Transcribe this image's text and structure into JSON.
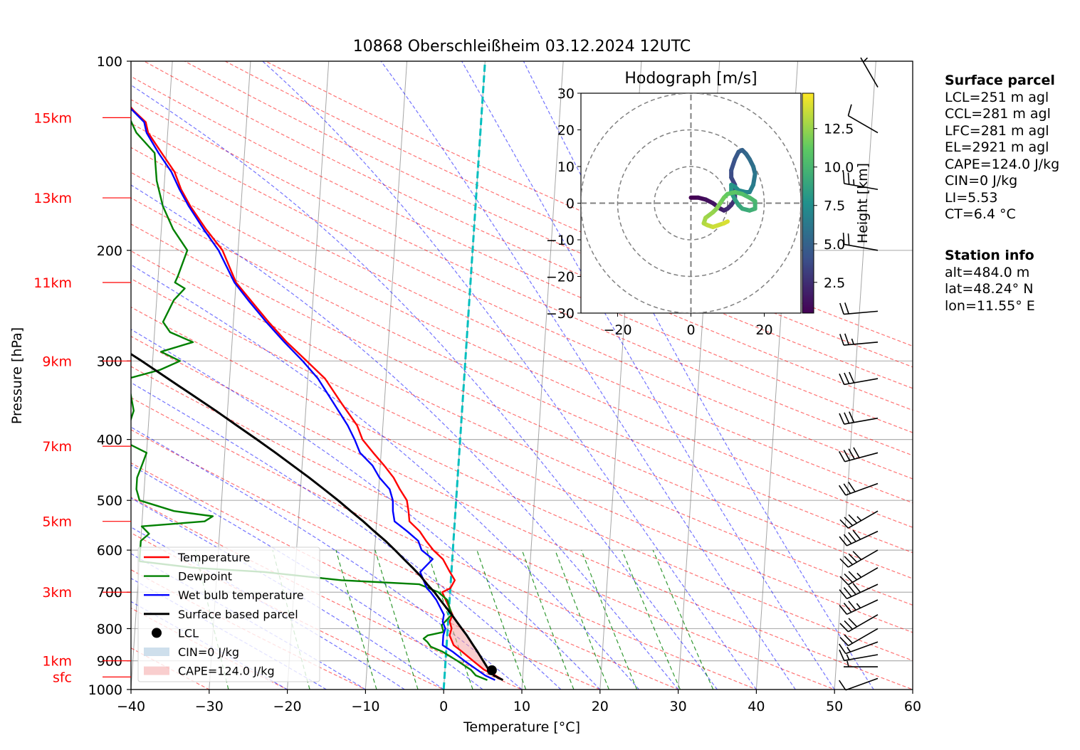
{
  "chart_data": {
    "type": "skewt",
    "title": "10868 Oberschleißheim 03.12.2024 12UTC",
    "xlabel": "Temperature [°C]",
    "ylabel": "Pressure [hPa]",
    "xlim": [
      -40,
      60
    ],
    "ylim": [
      1000,
      100
    ],
    "x_ticks": [
      -40,
      -30,
      -20,
      -10,
      0,
      10,
      20,
      30,
      40,
      50,
      60
    ],
    "pressure_ticks": [
      100,
      200,
      300,
      400,
      500,
      600,
      700,
      800,
      900,
      1000
    ],
    "height_ticks": [
      {
        "label": "sfc",
        "p": 955
      },
      {
        "label": "1km",
        "p": 900
      },
      {
        "label": "3km",
        "p": 700
      },
      {
        "label": "5km",
        "p": 540
      },
      {
        "label": "7km",
        "p": 410
      },
      {
        "label": "9km",
        "p": 300
      },
      {
        "label": "11km",
        "p": 225
      },
      {
        "label": "13km",
        "p": 165
      },
      {
        "label": "15km",
        "p": 123
      }
    ],
    "height_tick_color": "#ff0000",
    "series": [
      {
        "name": "Temperature",
        "color": "#ff0000",
        "p": [
          966,
          950,
          930,
          900,
          870,
          850,
          820,
          800,
          780,
          760,
          720,
          700,
          690,
          670,
          650,
          620,
          600,
          580,
          560,
          540,
          520,
          500,
          480,
          460,
          440,
          420,
          400,
          380,
          350,
          320,
          300,
          280,
          260,
          240,
          225,
          200,
          185,
          170,
          160,
          150,
          140,
          130,
          125,
          120,
          117
        ],
        "t": [
          7.5,
          6.5,
          5.0,
          3.5,
          2.0,
          0.9,
          0.3,
          0.5,
          0.2,
          0.5,
          -0.5,
          -1.0,
          0,
          0.5,
          -0.2,
          -1.2,
          -2.5,
          -3.5,
          -4.4,
          -5.8,
          -6.0,
          -6.3,
          -7.3,
          -8.2,
          -9.5,
          -11.0,
          -12.5,
          -13.3,
          -15.5,
          -17.8,
          -20.3,
          -23.0,
          -25.5,
          -28.0,
          -30.0,
          -32.0,
          -34.3,
          -36.5,
          -37.8,
          -38.8,
          -40.6,
          -42.5,
          -42.9,
          -44.5,
          -45.3
        ]
      },
      {
        "name": "Dewpoint",
        "color": "#008000",
        "p": [
          966,
          950,
          930,
          900,
          870,
          855,
          840,
          830,
          820,
          810,
          790,
          760,
          720,
          700,
          680,
          670,
          650,
          640,
          625,
          600,
          580,
          565,
          550,
          540,
          530,
          520,
          500,
          480,
          460,
          440,
          420,
          400,
          390,
          380,
          360,
          340,
          320,
          310,
          300,
          290,
          280,
          270,
          260,
          240,
          230,
          225,
          220,
          200,
          185,
          170,
          155,
          140,
          130,
          120
        ],
        "t": [
          5.5,
          4.0,
          3.3,
          1.5,
          -0.5,
          -2.0,
          -2.5,
          -3.0,
          -2.5,
          -0.5,
          -0.8,
          0.4,
          -0.3,
          -1.5,
          -4.0,
          -14.0,
          -24.0,
          -33.0,
          -40.0,
          -40.0,
          -40.0,
          -39.0,
          -40.0,
          -32.0,
          -31.0,
          -36.0,
          -40.5,
          -41.0,
          -41.0,
          -40.5,
          -40.0,
          -43.5,
          -44.5,
          -42.5,
          -42.0,
          -42.5,
          -43.0,
          -39.0,
          -36.5,
          -39.0,
          -35.0,
          -38.0,
          -39.0,
          -37.8,
          -36.5,
          -37.8,
          -37.5,
          -36.5,
          -38.5,
          -40.0,
          -41.0,
          -41.5,
          -44.0,
          -45.5
        ]
      },
      {
        "name": "Wet bulb temperature",
        "color": "#0000ff",
        "p": [
          966,
          950,
          930,
          900,
          870,
          850,
          820,
          800,
          780,
          760,
          720,
          700,
          690,
          670,
          650,
          620,
          600,
          580,
          560,
          540,
          520,
          500,
          480,
          460,
          440,
          420,
          400,
          380,
          350,
          320,
          300,
          280,
          260,
          240,
          225,
          200,
          185,
          170,
          160,
          150,
          140,
          130,
          125,
          120,
          117
        ],
        "t": [
          6.5,
          5.2,
          4.1,
          2.4,
          0.8,
          -0.5,
          -0.5,
          -0.3,
          -0.7,
          -0.6,
          -1.7,
          -2.5,
          -3.0,
          -3.5,
          -4.0,
          -2.5,
          -4.0,
          -4.5,
          -6.0,
          -7.7,
          -8.0,
          -8.1,
          -8.6,
          -10.0,
          -11.0,
          -12.7,
          -13.5,
          -14.5,
          -16.5,
          -18.7,
          -20.8,
          -23.3,
          -25.8,
          -28.3,
          -30.2,
          -32.5,
          -34.6,
          -36.7,
          -38.0,
          -39.2,
          -41.0,
          -42.7,
          -43.1,
          -44.6,
          -45.6
        ]
      },
      {
        "name": "Surface based parcel",
        "color": "#000000",
        "p": [
          966,
          950,
          930,
          900,
          870,
          850,
          820,
          800,
          780,
          760,
          720,
          700,
          680,
          660,
          640,
          620,
          600,
          580,
          560,
          540,
          520,
          500,
          480,
          460,
          440,
          420,
          400,
          380,
          360,
          340,
          320,
          300,
          280,
          260,
          240,
          220,
          200,
          180,
          160
        ],
        "t": [
          7.5,
          6.3,
          5.6,
          4.8,
          4.0,
          3.4,
          2.5,
          1.8,
          1.1,
          0.4,
          -1.2,
          -2.0,
          -3.0,
          -3.9,
          -5.0,
          -6.2,
          -7.4,
          -8.7,
          -10.2,
          -11.7,
          -13.4,
          -15.1,
          -17.0,
          -19.0,
          -21.2,
          -23.5,
          -26.0,
          -28.7,
          -31.5,
          -34.6,
          -37.9,
          -41.4,
          -45.3,
          -49.4,
          -53.9,
          -58.8,
          -64.1,
          -70.0,
          -76.5
        ]
      }
    ],
    "lcl": {
      "name": "LCL",
      "t": 6.0,
      "p": 932
    },
    "cin_fill_label": "CIN=0 J/kg",
    "cape_fill_label": "CAPE=124.0 J/kg",
    "hodograph": {
      "title": "Hodograph [m/s]",
      "range": [
        -30,
        30
      ],
      "ticks": [
        -30,
        -20,
        -10,
        0,
        10,
        20,
        30
      ],
      "xticks": [
        -20,
        0,
        20
      ],
      "rings": [
        10,
        20,
        30
      ],
      "colorbar_label": "Height [km]",
      "colorbar_ticks": [
        2.5,
        5.0,
        7.5,
        10.0,
        12.5
      ],
      "colorbar_range": [
        0.5,
        14.8
      ],
      "u": [
        0,
        2,
        4,
        6,
        8,
        9,
        10,
        11,
        12,
        12,
        12,
        11,
        11,
        12,
        13,
        14,
        15,
        16,
        17,
        17.5,
        17,
        16,
        15,
        13,
        12,
        11,
        11,
        12,
        13,
        14,
        16,
        17.5,
        17.5,
        16,
        14,
        12,
        10,
        9,
        8,
        7,
        6,
        4,
        3.5,
        4.5,
        6,
        9,
        10
      ],
      "v": [
        1.5,
        1.5,
        1.0,
        0,
        -1.5,
        -2,
        -1.5,
        -0.5,
        1,
        3,
        5,
        7,
        9,
        12,
        14,
        14.5,
        13.5,
        12,
        10,
        8,
        5,
        3,
        3,
        3.5,
        4.5,
        5,
        3,
        1,
        -0.5,
        -1.5,
        -2,
        -1.5,
        0.5,
        1.5,
        2.5,
        3,
        2.5,
        1.5,
        0,
        -1.5,
        -2.5,
        -4,
        -5.5,
        -6,
        -6.5,
        -5.5,
        -5
      ],
      "h": [
        0.5,
        0.8,
        1.1,
        1.4,
        1.7,
        2.0,
        2.3,
        2.6,
        2.9,
        3.2,
        3.5,
        3.8,
        4.1,
        4.4,
        4.7,
        5.0,
        5.3,
        5.6,
        5.9,
        6.2,
        6.5,
        6.8,
        7.1,
        7.4,
        7.7,
        8.0,
        8.3,
        8.6,
        8.9,
        9.2,
        9.5,
        9.8,
        10.1,
        10.4,
        10.7,
        11.0,
        11.3,
        11.6,
        11.9,
        12.2,
        12.5,
        12.8,
        13.1,
        13.4,
        13.7,
        14.0,
        14.3
      ]
    },
    "wind_barbs": [
      {
        "p": 960,
        "speed": 10,
        "dir": 250
      },
      {
        "p": 920,
        "speed": 5,
        "dir": 270
      },
      {
        "p": 880,
        "speed": 15,
        "dir": 260
      },
      {
        "p": 840,
        "speed": 15,
        "dir": 250
      },
      {
        "p": 800,
        "speed": 20,
        "dir": 240
      },
      {
        "p": 760,
        "speed": 30,
        "dir": 240
      },
      {
        "p": 720,
        "speed": 35,
        "dir": 245
      },
      {
        "p": 680,
        "speed": 40,
        "dir": 245
      },
      {
        "p": 640,
        "speed": 35,
        "dir": 240
      },
      {
        "p": 600,
        "speed": 40,
        "dir": 240
      },
      {
        "p": 560,
        "speed": 40,
        "dir": 245
      },
      {
        "p": 520,
        "speed": 35,
        "dir": 240
      },
      {
        "p": 470,
        "speed": 30,
        "dir": 250
      },
      {
        "p": 420,
        "speed": 40,
        "dir": 255
      },
      {
        "p": 370,
        "speed": 30,
        "dir": 260
      },
      {
        "p": 320,
        "speed": 30,
        "dir": 260
      },
      {
        "p": 280,
        "speed": 25,
        "dir": 265
      },
      {
        "p": 250,
        "speed": 20,
        "dir": 265
      },
      {
        "p": 200,
        "speed": 20,
        "dir": 280
      },
      {
        "p": 160,
        "speed": 25,
        "dir": 280
      },
      {
        "p": 130,
        "speed": 10,
        "dir": 300
      },
      {
        "p": 110,
        "speed": 5,
        "dir": 330
      }
    ],
    "legend": [
      "Temperature",
      "Dewpoint",
      "Wet bulb temperature",
      "Surface based parcel",
      "LCL",
      "CIN=0 J/kg",
      "CAPE=124.0 J/kg"
    ],
    "legend_placement": "lower-left",
    "grid": true
  },
  "sidebar": {
    "surface": {
      "title": "Surface parcel",
      "lines": [
        "LCL=251 m agl",
        "CCL=281 m agl",
        "LFC=281 m agl",
        "EL=2921 m agl",
        "CAPE=124.0 J/kg",
        "CIN=0 J/kg",
        "LI=5.53",
        "CT=6.4 °C"
      ]
    },
    "station": {
      "title": "Station info",
      "lines": [
        "alt=484.0 m",
        "lat=48.24° N",
        "lon=11.55° E"
      ]
    }
  },
  "colors": {
    "dry_adiabat": "#ff0000",
    "moist_adiabat": "#0000ff",
    "mixing_ratio": "#008000",
    "isotherm": "#808080",
    "freezing": "#00bfbf",
    "cape_fill": "#f4a6a6",
    "cin_fill": "#a6c4dd"
  }
}
